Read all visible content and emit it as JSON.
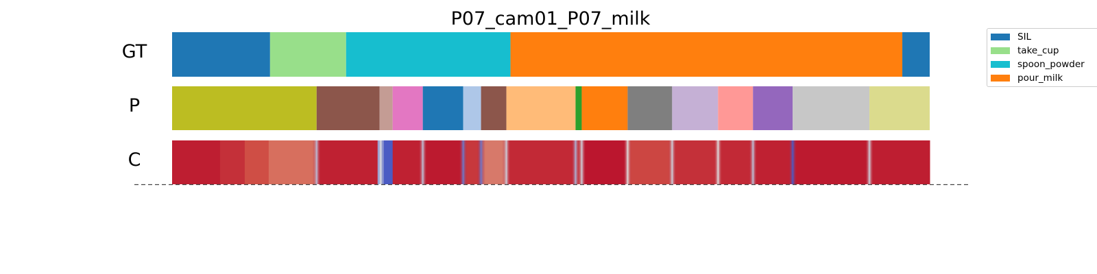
{
  "chart_data": {
    "type": "segmentation",
    "title": "P07_cam01_P07_milk",
    "rows": [
      "GT",
      "P",
      "C"
    ],
    "x_range": [
      0,
      1106
    ],
    "legend": {
      "placement": "top-right",
      "entries": [
        {
          "label": "SIL",
          "color": "#1f77b4"
        },
        {
          "label": "take_cup",
          "color": "#98df8a"
        },
        {
          "label": "spoon_powder",
          "color": "#17becf"
        },
        {
          "label": "pour_milk",
          "color": "#ff7f0e"
        }
      ]
    },
    "gt_segments": [
      {
        "start": 0,
        "end": 143,
        "color": "#1f77b4"
      },
      {
        "start": 143,
        "end": 254,
        "color": "#98df8a"
      },
      {
        "start": 254,
        "end": 494,
        "color": "#17becf"
      },
      {
        "start": 494,
        "end": 1066,
        "color": "#ff7f0e"
      },
      {
        "start": 1066,
        "end": 1106,
        "color": "#1f77b4"
      }
    ],
    "p_segments": [
      {
        "start": 0,
        "end": 211,
        "color": "#bcbd22"
      },
      {
        "start": 211,
        "end": 303,
        "color": "#8c564b"
      },
      {
        "start": 303,
        "end": 322,
        "color": "#c49c94"
      },
      {
        "start": 322,
        "end": 366,
        "color": "#e377c2"
      },
      {
        "start": 366,
        "end": 425,
        "color": "#1f77b4"
      },
      {
        "start": 425,
        "end": 451,
        "color": "#aec7e8"
      },
      {
        "start": 451,
        "end": 488,
        "color": "#8c564b"
      },
      {
        "start": 488,
        "end": 589,
        "color": "#ffbb78"
      },
      {
        "start": 589,
        "end": 598,
        "color": "#2ca02c"
      },
      {
        "start": 598,
        "end": 665,
        "color": "#ff7f0e"
      },
      {
        "start": 665,
        "end": 730,
        "color": "#7f7f7f"
      },
      {
        "start": 730,
        "end": 797,
        "color": "#c5b0d5"
      },
      {
        "start": 797,
        "end": 848,
        "color": "#ff9896"
      },
      {
        "start": 848,
        "end": 906,
        "color": "#9467bd"
      },
      {
        "start": 906,
        "end": 1018,
        "color": "#c7c7c7"
      },
      {
        "start": 1018,
        "end": 1106,
        "color": "#dbdb8d"
      }
    ],
    "confidence_segments": [
      {
        "start": 0,
        "end": 70,
        "value": 0.93
      },
      {
        "start": 70,
        "end": 106,
        "value": 0.88
      },
      {
        "start": 106,
        "end": 141,
        "value": 0.8
      },
      {
        "start": 141,
        "end": 210,
        "value": 0.72
      },
      {
        "start": 210,
        "end": 300,
        "value": 0.92
      },
      {
        "start": 300,
        "end": 303,
        "value": 0.3
      },
      {
        "start": 303,
        "end": 306,
        "value": 0.45
      },
      {
        "start": 306,
        "end": 309,
        "value": 0.25
      },
      {
        "start": 309,
        "end": 322,
        "value": 0.05
      },
      {
        "start": 322,
        "end": 366,
        "value": 0.92
      },
      {
        "start": 366,
        "end": 424,
        "value": 0.94
      },
      {
        "start": 424,
        "end": 451,
        "value": 0.86
      },
      {
        "start": 451,
        "end": 488,
        "value": 0.7
      },
      {
        "start": 488,
        "end": 589,
        "value": 0.9
      },
      {
        "start": 589,
        "end": 598,
        "value": 0.85
      },
      {
        "start": 598,
        "end": 665,
        "value": 0.95
      },
      {
        "start": 665,
        "end": 730,
        "value": 0.82
      },
      {
        "start": 730,
        "end": 797,
        "value": 0.88
      },
      {
        "start": 797,
        "end": 848,
        "value": 0.9
      },
      {
        "start": 848,
        "end": 906,
        "value": 0.92
      },
      {
        "start": 906,
        "end": 1018,
        "value": 0.94
      },
      {
        "start": 1018,
        "end": 1106,
        "value": 0.93
      }
    ],
    "confidence_transitions": [
      {
        "at": 211,
        "value": 0.4
      },
      {
        "at": 366,
        "value": 0.4
      },
      {
        "at": 425,
        "value": 0.15
      },
      {
        "at": 451,
        "value": 0.15
      },
      {
        "at": 488,
        "value": 0.45
      },
      {
        "at": 589,
        "value": 0.35
      },
      {
        "at": 598,
        "value": 0.45
      },
      {
        "at": 665,
        "value": 0.5
      },
      {
        "at": 730,
        "value": 0.45
      },
      {
        "at": 797,
        "value": 0.5
      },
      {
        "at": 848,
        "value": 0.4
      },
      {
        "at": 906,
        "value": 0.05
      },
      {
        "at": 1018,
        "value": 0.45
      }
    ]
  }
}
